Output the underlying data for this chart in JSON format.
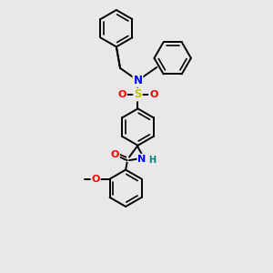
{
  "bg_color": "#e8e8e8",
  "bond_color": "#000000",
  "atom_colors": {
    "N": "#0000ff",
    "O": "#ff0000",
    "S": "#c8c800",
    "H": "#008080",
    "C": "#000000"
  },
  "figsize": [
    3.0,
    3.0
  ],
  "dpi": 100
}
